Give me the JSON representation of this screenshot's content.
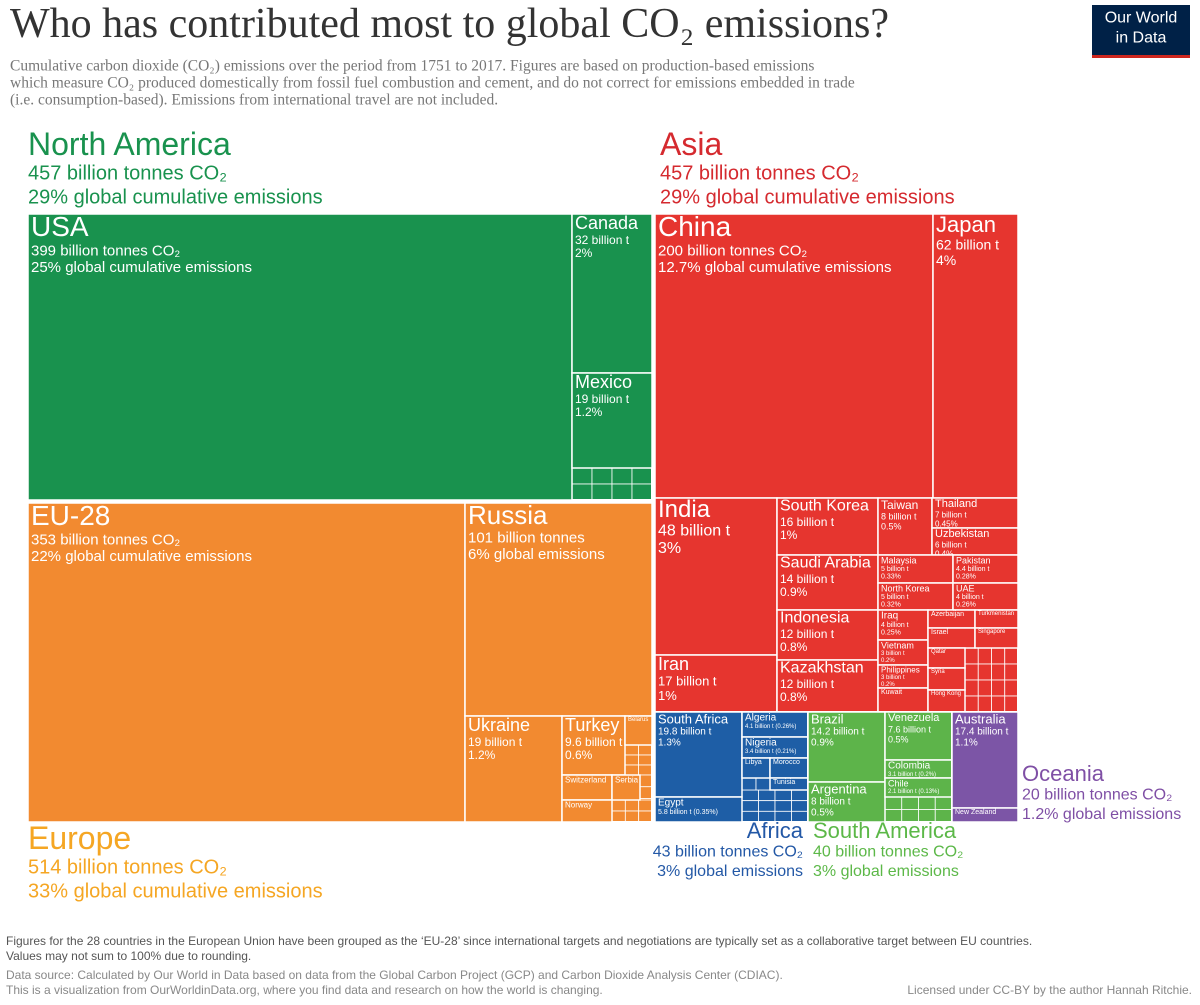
{
  "header": {
    "title": "Who has contributed most to global CO₂ emissions?",
    "logo": [
      "Our World",
      "in Data"
    ],
    "subtitle": [
      "Cumulative carbon dioxide (CO₂) emissions over the period from 1751 to 2017. Figures are based on production-based emissions",
      "which measure CO₂ produced domestically from fossil fuel combustion and cement, and do not correct for emissions embedded in trade",
      "(i.e. consumption-based). Emissions from international travel are not included."
    ]
  },
  "regions": [
    {
      "name": "North America",
      "total": "457 billion tonnes CO₂",
      "share": "29% global cumulative emissions",
      "countries": [
        {
          "name": "USA",
          "lines": [
            "399 billion tonnes CO₂",
            "25% global cumulative emissions"
          ]
        },
        {
          "name": "Canada",
          "lines": [
            "32 billion t",
            "2%"
          ]
        },
        {
          "name": "Mexico",
          "lines": [
            "19 billion t",
            "1.2%"
          ]
        }
      ]
    },
    {
      "name": "Europe",
      "total": "514 billion tonnes CO₂",
      "share": "33% global cumulative emissions",
      "countries": [
        {
          "name": "EU-28",
          "lines": [
            "353 billion tonnes CO₂",
            "22% global cumulative emissions"
          ]
        },
        {
          "name": "Russia",
          "lines": [
            "101 billion tonnes",
            "6% global emissions"
          ]
        },
        {
          "name": "Ukraine",
          "lines": [
            "19 billion t",
            "1.2%"
          ]
        },
        {
          "name": "Turkey",
          "lines": [
            "9.6 billion t",
            "0.6%"
          ]
        },
        {
          "name": "Belarus",
          "lines": []
        },
        {
          "name": "Switzerland",
          "lines": []
        },
        {
          "name": "Serbia",
          "lines": []
        },
        {
          "name": "Norway",
          "lines": []
        }
      ]
    },
    {
      "name": "Asia",
      "total": "457 billion tonnes CO₂",
      "share": "29% global cumulative emissions",
      "countries": [
        {
          "name": "China",
          "lines": [
            "200 billion tonnes CO₂",
            "12.7% global cumulative emissions"
          ]
        },
        {
          "name": "Japan",
          "lines": [
            "62 billion t",
            "4%"
          ]
        },
        {
          "name": "India",
          "lines": [
            "48 billion t",
            "3%"
          ]
        },
        {
          "name": "Iran",
          "lines": [
            "17 billion t",
            "1%"
          ]
        },
        {
          "name": "South Korea",
          "lines": [
            "16 billion t",
            "1%"
          ]
        },
        {
          "name": "Saudi Arabia",
          "lines": [
            "14 billion t",
            "0.9%"
          ]
        },
        {
          "name": "Indonesia",
          "lines": [
            "12 billion t",
            "0.8%"
          ]
        },
        {
          "name": "Kazakhstan",
          "lines": [
            "12 billion t",
            "0.8%"
          ]
        },
        {
          "name": "Taiwan",
          "lines": [
            "8 billion t",
            "0.5%"
          ]
        },
        {
          "name": "Thailand",
          "lines": [
            "7 billion t",
            "0.45%"
          ]
        },
        {
          "name": "Uzbekistan",
          "lines": [
            "6 billion t",
            "0.4%"
          ]
        },
        {
          "name": "Malaysia",
          "lines": [
            "5 billion t",
            "0.33%"
          ]
        },
        {
          "name": "North Korea",
          "lines": [
            "5 billion t",
            "0.32%"
          ]
        },
        {
          "name": "Pakistan",
          "lines": [
            "4.4 billion t",
            "0.28%"
          ]
        },
        {
          "name": "UAE",
          "lines": [
            "4 billion t",
            "0.26%"
          ]
        },
        {
          "name": "Iraq",
          "lines": [
            "4 billion t",
            "0.25%"
          ]
        },
        {
          "name": "Vietnam",
          "lines": [
            "3 billion t",
            "0.2%"
          ]
        },
        {
          "name": "Philippines",
          "lines": [
            "3 billion t",
            "0.2%"
          ]
        },
        {
          "name": "Kuwait",
          "lines": []
        },
        {
          "name": "Azerbaijan",
          "lines": []
        },
        {
          "name": "Turkmenistan",
          "lines": []
        },
        {
          "name": "Israel",
          "lines": []
        },
        {
          "name": "Singapore",
          "lines": []
        },
        {
          "name": "Qatar",
          "lines": []
        },
        {
          "name": "Syria",
          "lines": []
        },
        {
          "name": "Hong Kong",
          "lines": []
        }
      ]
    },
    {
      "name": "Africa",
      "total": "43 billion tonnes CO₂",
      "share": "3% global emissions",
      "countries": [
        {
          "name": "South Africa",
          "lines": [
            "19.8 billion t",
            "1.3%"
          ]
        },
        {
          "name": "Algeria",
          "lines": [
            "4.1 billion t (0.26%)"
          ]
        },
        {
          "name": "Nigeria",
          "lines": [
            "3.4 billion t (0.21%)"
          ]
        },
        {
          "name": "Libya",
          "lines": []
        },
        {
          "name": "Morocco",
          "lines": []
        },
        {
          "name": "Tunisia",
          "lines": []
        },
        {
          "name": "Egypt",
          "lines": [
            "5.8 billion t (0.35%)"
          ]
        }
      ]
    },
    {
      "name": "South America",
      "total": "40 billion tonnes CO₂",
      "share": "3% global emissions",
      "countries": [
        {
          "name": "Brazil",
          "lines": [
            "14.2 billion t",
            "0.9%"
          ]
        },
        {
          "name": "Argentina",
          "lines": [
            "8 billion t",
            "0.5%"
          ]
        },
        {
          "name": "Venezuela",
          "lines": [
            "7.6 billion t",
            "0.5%"
          ]
        },
        {
          "name": "Colombia",
          "lines": [
            "3.1 billion t (0.2%)"
          ]
        },
        {
          "name": "Chile",
          "lines": [
            "2.1 billion t (0.13%)"
          ]
        }
      ]
    },
    {
      "name": "Oceania",
      "total": "20 billion tonnes CO₂",
      "share": "1.2% global emissions",
      "countries": [
        {
          "name": "Australia",
          "lines": [
            "17.4 billion t",
            "1.1%"
          ]
        },
        {
          "name": "New Zealand",
          "lines": []
        }
      ]
    }
  ],
  "footer": {
    "notes": [
      "Figures for the 28 countries in the European Union have been grouped as the ‘EU-28’ since international targets and negotiations are typically set as a collaborative target between EU countries.",
      "Values may not sum to 100% due to rounding."
    ],
    "source": "Data source: Calculated by Our World in Data based on data from the Global Carbon Project (GCP) and Carbon Dioxide Analysis Center (CDIAC).",
    "visualization": "This is a visualization from OurWorldinData.org, where you find data and research on how the world is changing.",
    "license": "Licensed under CC-BY by the author Hannah Ritchie."
  }
}
